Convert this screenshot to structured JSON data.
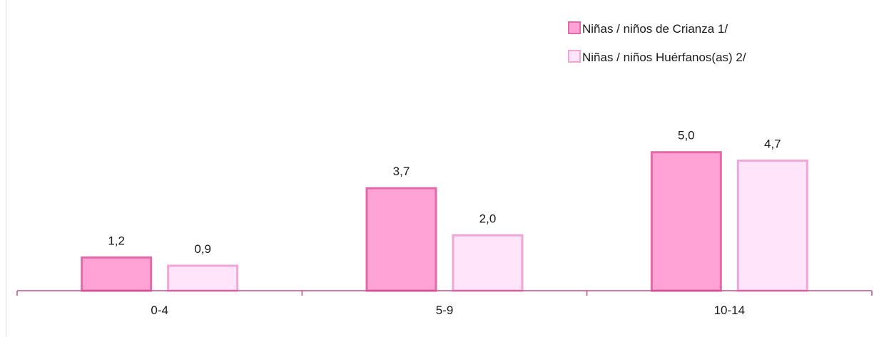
{
  "chart_data": {
    "type": "bar",
    "categories": [
      "0-4",
      "5-9",
      "10-14"
    ],
    "series": [
      {
        "name": "Niñas / niños de Crianza 1/",
        "values": [
          1.2,
          3.7,
          5.0
        ],
        "labels": [
          "1,2",
          "3,7",
          "5,0"
        ],
        "fill": "#ffa3d6",
        "stroke": "#e36aa6"
      },
      {
        "name": "Niñas / niños Huérfanos(as) 2/",
        "values": [
          0.9,
          2.0,
          4.7
        ],
        "labels": [
          "0,9",
          "2,0",
          "4,7"
        ],
        "fill": "#ffe4fa",
        "stroke": "#f2a6d6"
      }
    ],
    "title": "",
    "xlabel": "",
    "ylabel": "",
    "ylim": [
      0,
      10.5
    ],
    "grid": false,
    "legend_position": "top-right",
    "axis_color": "#c94a8a"
  }
}
